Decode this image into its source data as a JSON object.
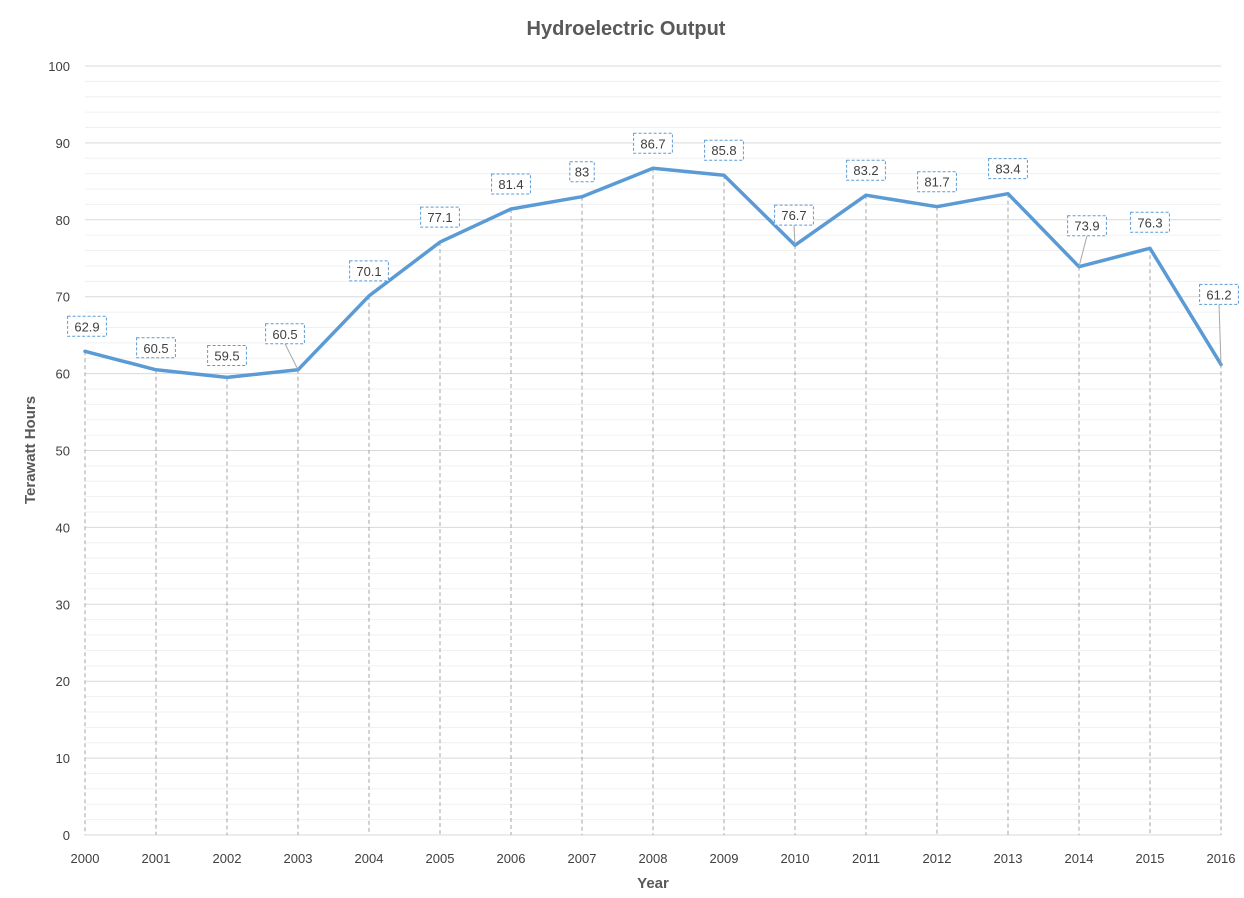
{
  "chart_data": {
    "type": "line",
    "title": "Hydroelectric Output",
    "xlabel": "Year",
    "ylabel": "Terawatt Hours",
    "ylim": [
      0,
      100
    ],
    "y_major_step": 10,
    "y_minor_step": 2,
    "grid": true,
    "drop_lines": true,
    "categories": [
      "2000",
      "2001",
      "2002",
      "2003",
      "2004",
      "2005",
      "2006",
      "2007",
      "2008",
      "2009",
      "2010",
      "2011",
      "2012",
      "2013",
      "2014",
      "2015",
      "2016"
    ],
    "series": [
      {
        "name": "Hydroelectric Output",
        "color": "#5b9bd5",
        "values": [
          62.9,
          60.5,
          59.5,
          60.5,
          70.1,
          77.1,
          81.4,
          83,
          86.7,
          85.8,
          76.7,
          83.2,
          81.7,
          83.4,
          73.9,
          76.3,
          61.2
        ],
        "labels": [
          "62.9",
          "60.5",
          "59.5",
          "60.5",
          "70.1",
          "77.1",
          "81.4",
          "83",
          "86.7",
          "85.8",
          "76.7",
          "83.2",
          "81.7",
          "83.4",
          "73.9",
          "76.3",
          "61.2"
        ]
      }
    ]
  }
}
